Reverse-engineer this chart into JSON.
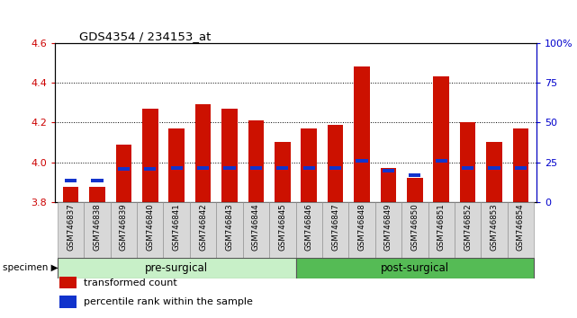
{
  "title": "GDS4354 / 234153_at",
  "specimens": [
    "GSM746837",
    "GSM746838",
    "GSM746839",
    "GSM746840",
    "GSM746841",
    "GSM746842",
    "GSM746843",
    "GSM746844",
    "GSM746845",
    "GSM746846",
    "GSM746847",
    "GSM746848",
    "GSM746849",
    "GSM746850",
    "GSM746851",
    "GSM746852",
    "GSM746853",
    "GSM746854"
  ],
  "transformed_counts": [
    3.875,
    3.875,
    4.09,
    4.27,
    4.17,
    4.29,
    4.27,
    4.21,
    4.1,
    4.17,
    4.19,
    4.48,
    3.97,
    3.92,
    4.43,
    4.2,
    4.1,
    4.17
  ],
  "percentile_values": [
    3.908,
    3.908,
    3.968,
    3.968,
    3.972,
    3.972,
    3.972,
    3.972,
    3.972,
    3.972,
    3.972,
    4.005,
    3.956,
    3.936,
    4.005,
    3.972,
    3.972,
    3.972
  ],
  "ymin": 3.8,
  "ymax": 4.6,
  "bar_color": "#cc1100",
  "blue_color": "#1133cc",
  "bar_width": 0.6,
  "groups": [
    {
      "label": "pre-surgical",
      "start": 0,
      "end": 9
    },
    {
      "label": "post-surgical",
      "start": 9,
      "end": 18
    }
  ],
  "pre_group_color": "#c8f0c8",
  "post_group_color": "#55bb55",
  "legend_items": [
    {
      "color": "#cc1100",
      "label": "transformed count"
    },
    {
      "color": "#1133cc",
      "label": "percentile rank within the sample"
    }
  ],
  "left_yticks": [
    3.8,
    4.0,
    4.2,
    4.4,
    4.6
  ],
  "grid_lines": [
    4.0,
    4.2,
    4.4
  ],
  "right_yticks": [
    0,
    25,
    50,
    75,
    100
  ],
  "right_ytick_labels": [
    "0",
    "25",
    "50",
    "75",
    "100%"
  ],
  "background_color": "#ffffff",
  "xlabel_color": "#cc0000",
  "right_axis_color": "#0000cc",
  "cell_bg": "#d8d8d8",
  "cell_border": "#888888"
}
